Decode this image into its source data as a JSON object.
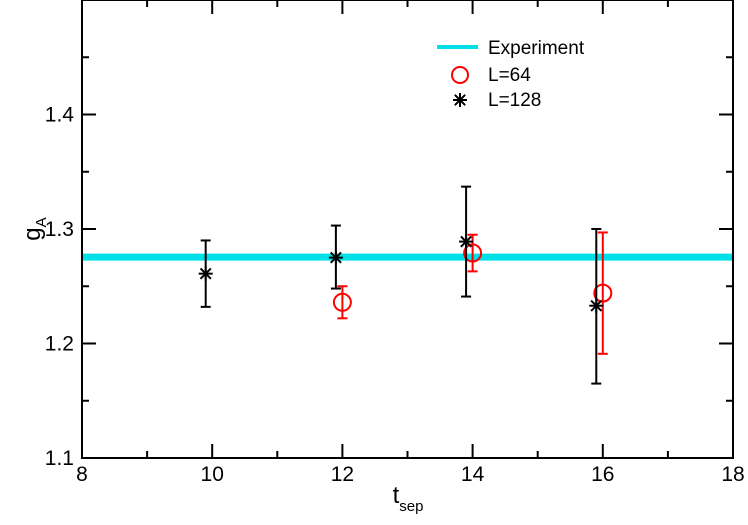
{
  "chart_data": {
    "type": "scatter",
    "title": "",
    "xlabel": {
      "main": "t",
      "sub": "sep"
    },
    "ylabel": {
      "main": "g",
      "sub": "A"
    },
    "xlim": [
      8,
      18
    ],
    "ylim": [
      1.1,
      1.5
    ],
    "x_ticks": [
      8,
      10,
      12,
      14,
      16,
      18
    ],
    "x_tick_labels": [
      "8",
      "10",
      "12",
      "14",
      "16",
      "18"
    ],
    "x_minor_step": 1,
    "y_ticks": [
      1.1,
      1.2,
      1.3,
      1.4
    ],
    "y_tick_labels": [
      "1.1",
      "1.2",
      "1.3",
      "1.4"
    ],
    "y_minor_step": 0.05,
    "grid": false,
    "legend_position": "top-right",
    "reference_line": {
      "name": "Experiment",
      "y": 1.2754,
      "color": "#00e0e8"
    },
    "series": [
      {
        "name": "L=64",
        "marker": "open-circle",
        "color": "#ff0000",
        "points": [
          {
            "x": 12.0,
            "y": 1.236,
            "err_lo": 1.222,
            "err_hi": 1.25
          },
          {
            "x": 14.0,
            "y": 1.279,
            "err_lo": 1.263,
            "err_hi": 1.295
          },
          {
            "x": 16.0,
            "y": 1.244,
            "err_lo": 1.191,
            "err_hi": 1.297
          }
        ]
      },
      {
        "name": "L=128",
        "marker": "asterisk",
        "color": "#000000",
        "points": [
          {
            "x": 9.9,
            "y": 1.261,
            "err_lo": 1.232,
            "err_hi": 1.29
          },
          {
            "x": 11.9,
            "y": 1.275,
            "err_lo": 1.248,
            "err_hi": 1.303
          },
          {
            "x": 13.9,
            "y": 1.289,
            "err_lo": 1.241,
            "err_hi": 1.337
          },
          {
            "x": 15.9,
            "y": 1.233,
            "err_lo": 1.165,
            "err_hi": 1.3
          }
        ]
      }
    ]
  }
}
